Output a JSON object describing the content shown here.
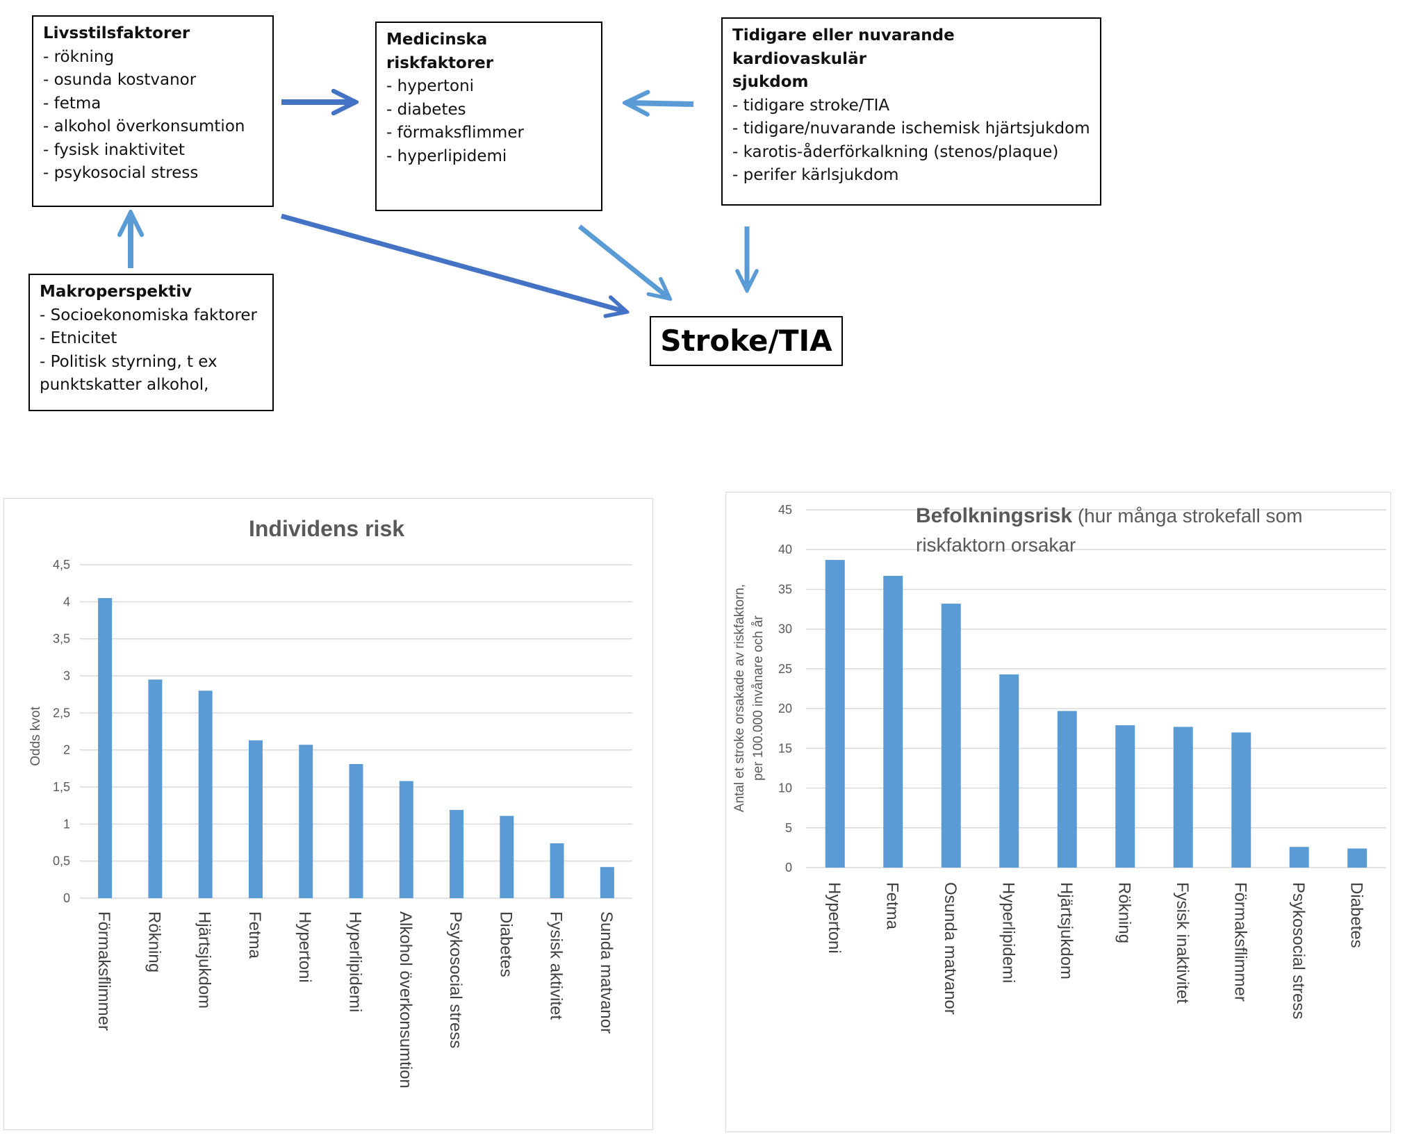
{
  "diagram": {
    "lifestyle": {
      "title": "Livsstilsfaktorer",
      "items": [
        "- rökning",
        "- osunda kostvanor",
        "- fetma",
        "- alkohol överkonsumtion",
        "- fysisk inaktivitet",
        "- psykosocial stress"
      ]
    },
    "medical": {
      "title": "Medicinska  riskfaktorer",
      "items": [
        "- hypertoni",
        "- diabetes",
        "- förmaksflimmer",
        "- hyperlipidemi"
      ]
    },
    "cardio": {
      "title_line1": "Tidigare  eller nuvarande kardiovaskulär",
      "title_line2": "sjukdom",
      "items": [
        "- tidigare stroke/TIA",
        "- tidigare/nuvarande ischemisk hjärtsjukdom",
        "- karotis-åderförkalkning (stenos/plaque)",
        "- perifer kärlsjukdom"
      ]
    },
    "macro": {
      "title": "Makroperspektiv",
      "items": [
        "- Socioekonomiska faktorer",
        "- Etnicitet",
        "- Politisk styrning, t ex",
        "punktskatter alkohol,"
      ]
    },
    "outcome": "Stroke/TIA",
    "colors": {
      "arrow_dark": "#4472c4",
      "arrow_light": "#5b9bd5"
    }
  },
  "chart_data": [
    {
      "type": "bar",
      "title": "Individens risk",
      "ylabel": "Odds kvot",
      "categories": [
        "Förmaksflimmer",
        "Rökning",
        "Hjärtsjukdom",
        "Fetma",
        "Hypertoni",
        "Hyperlipidemi",
        "Alkohol överkonsumtion",
        "Psykosocial stress",
        "Diabetes",
        "Fysisk aktivitet",
        "Sunda matvanor"
      ],
      "values": [
        4.05,
        2.95,
        2.8,
        2.13,
        2.07,
        1.81,
        1.58,
        1.19,
        1.11,
        0.74,
        0.42
      ],
      "yticks": [
        "0",
        "0,5",
        "1",
        "1,5",
        "2",
        "2,5",
        "3",
        "3,5",
        "4",
        "4,5"
      ],
      "ylim": [
        0,
        4.5
      ],
      "grid": true,
      "bar_color": "#5b9bd5"
    },
    {
      "type": "bar",
      "title": "Befolkningsrisk",
      "subtitle_part1": " (hur många strokefall som",
      "subtitle_part2": "riskfaktorn orsakar",
      "ylabel_line1": "Antal et stroke orsakade av riskfaktorn,",
      "ylabel_line2": "per 100.000 invånare och år",
      "categories": [
        "Hypertoni",
        "Fetma",
        "Osunda matvanor",
        "Hyperlipidemi",
        "Hjärtsjukdom",
        "Rökning",
        "Fysisk inaktivitet",
        "Förmaksflimmer",
        "Psykosocial stress",
        "Diabetes"
      ],
      "values": [
        38.7,
        36.7,
        33.2,
        24.3,
        19.7,
        17.9,
        17.7,
        17.0,
        2.6,
        2.4
      ],
      "yticks": [
        "0",
        "5",
        "10",
        "15",
        "20",
        "25",
        "30",
        "35",
        "40",
        "45"
      ],
      "ylim": [
        0,
        45
      ],
      "grid": true,
      "bar_color": "#5b9bd5"
    }
  ]
}
